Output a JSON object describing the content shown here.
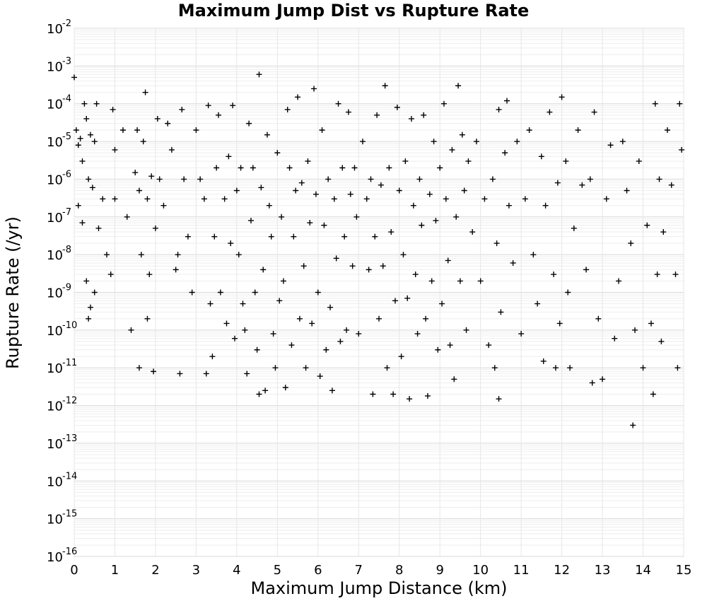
{
  "chart_data": {
    "type": "scatter",
    "title": "Maximum Jump Dist vs Rupture Rate",
    "xlabel": "Maximum Jump Distance (km)",
    "ylabel": "Rupture Rate (/yr)",
    "xlim": [
      0,
      15
    ],
    "ylim": [
      1e-16,
      0.01
    ],
    "y_scale": "log",
    "x_ticks": [
      "0",
      "1",
      "2",
      "3",
      "4",
      "5",
      "6",
      "7",
      "8",
      "9",
      "10",
      "11",
      "12",
      "13",
      "14",
      "15"
    ],
    "y_ticks": [
      {
        "base": "10",
        "exp": "-2"
      },
      {
        "base": "10",
        "exp": "-3"
      },
      {
        "base": "10",
        "exp": "-4"
      },
      {
        "base": "10",
        "exp": "-5"
      },
      {
        "base": "10",
        "exp": "-6"
      },
      {
        "base": "10",
        "exp": "-7"
      },
      {
        "base": "10",
        "exp": "-8"
      },
      {
        "base": "10",
        "exp": "-9"
      },
      {
        "base": "10",
        "exp": "-10"
      },
      {
        "base": "10",
        "exp": "-11"
      },
      {
        "base": "10",
        "exp": "-12"
      },
      {
        "base": "10",
        "exp": "-13"
      },
      {
        "base": "10",
        "exp": "-14"
      },
      {
        "base": "10",
        "exp": "-15"
      },
      {
        "base": "10",
        "exp": "-16"
      }
    ],
    "grid": true,
    "marker": "+",
    "color": "#000000",
    "points": [
      [
        0.0,
        0.0005
      ],
      [
        0.05,
        2e-05
      ],
      [
        0.1,
        8e-06
      ],
      [
        0.15,
        1.2e-05
      ],
      [
        0.2,
        3e-06
      ],
      [
        0.25,
        0.0001
      ],
      [
        0.3,
        4e-05
      ],
      [
        0.35,
        1e-06
      ],
      [
        0.4,
        1.5e-05
      ],
      [
        0.45,
        6e-07
      ],
      [
        0.5,
        1e-05
      ],
      [
        0.55,
        0.0001
      ],
      [
        0.1,
        2e-07
      ],
      [
        0.2,
        7e-08
      ],
      [
        0.3,
        2e-09
      ],
      [
        0.35,
        2e-10
      ],
      [
        0.4,
        4e-10
      ],
      [
        0.5,
        1e-09
      ],
      [
        0.6,
        5e-08
      ],
      [
        0.7,
        3e-07
      ],
      [
        0.8,
        1e-08
      ],
      [
        0.9,
        3e-09
      ],
      [
        0.95,
        7e-05
      ],
      [
        1.0,
        6e-06
      ],
      [
        1.0,
        3e-07
      ],
      [
        1.2,
        2e-05
      ],
      [
        1.3,
        1e-07
      ],
      [
        1.4,
        1e-10
      ],
      [
        1.5,
        1.5e-06
      ],
      [
        1.55,
        2e-05
      ],
      [
        1.6,
        1e-11
      ],
      [
        1.6,
        5e-07
      ],
      [
        1.65,
        1e-08
      ],
      [
        1.7,
        1e-05
      ],
      [
        1.75,
        0.0002
      ],
      [
        1.8,
        3e-07
      ],
      [
        1.8,
        2e-10
      ],
      [
        1.85,
        3e-09
      ],
      [
        1.9,
        1.2e-06
      ],
      [
        1.95,
        8e-12
      ],
      [
        2.0,
        5e-08
      ],
      [
        2.05,
        4e-05
      ],
      [
        2.1,
        1e-06
      ],
      [
        2.2,
        2e-07
      ],
      [
        2.3,
        3e-05
      ],
      [
        2.4,
        6e-06
      ],
      [
        2.5,
        4e-09
      ],
      [
        2.55,
        1e-08
      ],
      [
        2.6,
        7e-12
      ],
      [
        2.65,
        7e-05
      ],
      [
        2.7,
        1e-06
      ],
      [
        2.8,
        3e-08
      ],
      [
        2.9,
        1e-09
      ],
      [
        3.0,
        2e-05
      ],
      [
        3.1,
        1e-06
      ],
      [
        3.2,
        3e-07
      ],
      [
        3.25,
        7e-12
      ],
      [
        3.3,
        9e-05
      ],
      [
        3.35,
        5e-10
      ],
      [
        3.4,
        2e-11
      ],
      [
        3.45,
        3e-08
      ],
      [
        3.5,
        2e-06
      ],
      [
        3.55,
        5e-05
      ],
      [
        3.6,
        1e-09
      ],
      [
        3.7,
        3e-07
      ],
      [
        3.75,
        1.5e-10
      ],
      [
        3.8,
        4e-06
      ],
      [
        3.85,
        2e-08
      ],
      [
        3.9,
        9e-05
      ],
      [
        3.95,
        6e-11
      ],
      [
        4.0,
        5e-07
      ],
      [
        4.05,
        1e-08
      ],
      [
        4.1,
        2e-06
      ],
      [
        4.15,
        5e-10
      ],
      [
        4.2,
        1e-10
      ],
      [
        4.25,
        7e-12
      ],
      [
        4.3,
        3e-05
      ],
      [
        4.35,
        8e-08
      ],
      [
        4.4,
        2e-06
      ],
      [
        4.45,
        1e-09
      ],
      [
        4.5,
        3e-11
      ],
      [
        4.55,
        2e-12
      ],
      [
        4.55,
        0.0006
      ],
      [
        4.6,
        6e-07
      ],
      [
        4.65,
        4e-09
      ],
      [
        4.7,
        2.5e-12
      ],
      [
        4.75,
        1.5e-05
      ],
      [
        4.8,
        2e-07
      ],
      [
        4.85,
        3e-08
      ],
      [
        4.9,
        8e-11
      ],
      [
        4.95,
        1e-11
      ],
      [
        5.0,
        5e-06
      ],
      [
        5.05,
        6e-10
      ],
      [
        5.1,
        1e-07
      ],
      [
        5.15,
        2e-09
      ],
      [
        5.2,
        3e-12
      ],
      [
        5.25,
        7e-05
      ],
      [
        5.3,
        2e-06
      ],
      [
        5.35,
        4e-11
      ],
      [
        5.4,
        3e-08
      ],
      [
        5.45,
        5e-07
      ],
      [
        5.5,
        0.00015
      ],
      [
        5.55,
        2e-10
      ],
      [
        5.6,
        8e-07
      ],
      [
        5.65,
        5e-09
      ],
      [
        5.7,
        1e-11
      ],
      [
        5.75,
        3e-06
      ],
      [
        5.8,
        7e-08
      ],
      [
        5.85,
        1.5e-10
      ],
      [
        5.9,
        0.00025
      ],
      [
        5.95,
        4e-07
      ],
      [
        6.0,
        1e-09
      ],
      [
        6.05,
        6e-12
      ],
      [
        6.1,
        2e-05
      ],
      [
        6.15,
        6e-08
      ],
      [
        6.2,
        3e-11
      ],
      [
        6.25,
        1e-06
      ],
      [
        6.3,
        4e-10
      ],
      [
        6.35,
        2.5e-12
      ],
      [
        6.4,
        3e-07
      ],
      [
        6.45,
        8e-09
      ],
      [
        6.5,
        0.0001
      ],
      [
        6.55,
        5e-11
      ],
      [
        6.6,
        2e-06
      ],
      [
        6.65,
        3e-08
      ],
      [
        6.7,
        1e-10
      ],
      [
        6.75,
        6e-05
      ],
      [
        6.8,
        4e-07
      ],
      [
        6.85,
        5e-09
      ],
      [
        6.9,
        2e-06
      ],
      [
        6.95,
        1e-07
      ],
      [
        7.0,
        8e-11
      ],
      [
        7.1,
        1e-05
      ],
      [
        7.2,
        3e-07
      ],
      [
        7.25,
        4e-09
      ],
      [
        7.3,
        1e-06
      ],
      [
        7.35,
        2e-12
      ],
      [
        7.4,
        3e-08
      ],
      [
        7.45,
        5e-05
      ],
      [
        7.5,
        2e-10
      ],
      [
        7.55,
        7e-07
      ],
      [
        7.6,
        5e-09
      ],
      [
        7.65,
        0.0003
      ],
      [
        7.7,
        1e-11
      ],
      [
        7.75,
        2e-06
      ],
      [
        7.8,
        4e-08
      ],
      [
        7.85,
        2e-12
      ],
      [
        7.9,
        6e-10
      ],
      [
        7.95,
        8e-05
      ],
      [
        8.0,
        5e-07
      ],
      [
        8.05,
        2e-11
      ],
      [
        8.1,
        1e-08
      ],
      [
        8.15,
        3e-06
      ],
      [
        8.2,
        7e-10
      ],
      [
        8.25,
        1.5e-12
      ],
      [
        8.3,
        4e-05
      ],
      [
        8.35,
        2e-07
      ],
      [
        8.4,
        3e-09
      ],
      [
        8.45,
        8e-11
      ],
      [
        8.5,
        1e-06
      ],
      [
        8.55,
        6e-08
      ],
      [
        8.6,
        5e-05
      ],
      [
        8.65,
        2e-10
      ],
      [
        8.7,
        1.8e-12
      ],
      [
        8.75,
        4e-07
      ],
      [
        8.8,
        2e-09
      ],
      [
        8.85,
        1e-05
      ],
      [
        8.9,
        8e-08
      ],
      [
        8.95,
        3e-11
      ],
      [
        9.0,
        2e-06
      ],
      [
        9.05,
        5e-10
      ],
      [
        9.1,
        0.0001
      ],
      [
        9.15,
        3e-07
      ],
      [
        9.2,
        7e-09
      ],
      [
        9.25,
        4e-11
      ],
      [
        9.3,
        6e-06
      ],
      [
        9.35,
        5e-12
      ],
      [
        9.4,
        1e-07
      ],
      [
        9.45,
        0.0003
      ],
      [
        9.5,
        2e-09
      ],
      [
        9.55,
        1.5e-05
      ],
      [
        9.6,
        5e-07
      ],
      [
        9.65,
        1e-10
      ],
      [
        9.7,
        3e-06
      ],
      [
        9.8,
        4e-08
      ],
      [
        9.9,
        1e-05
      ],
      [
        10.0,
        2e-09
      ],
      [
        10.1,
        3e-07
      ],
      [
        10.2,
        4e-11
      ],
      [
        10.3,
        1e-06
      ],
      [
        10.35,
        1e-11
      ],
      [
        10.4,
        2e-08
      ],
      [
        10.45,
        1.5e-12
      ],
      [
        10.45,
        7e-05
      ],
      [
        10.5,
        3e-10
      ],
      [
        10.6,
        5e-06
      ],
      [
        10.65,
        0.00012
      ],
      [
        10.7,
        2e-07
      ],
      [
        10.8,
        6e-09
      ],
      [
        10.9,
        1e-05
      ],
      [
        11.0,
        8e-11
      ],
      [
        11.1,
        3e-07
      ],
      [
        11.2,
        2e-05
      ],
      [
        11.3,
        1e-08
      ],
      [
        11.4,
        5e-10
      ],
      [
        11.5,
        4e-06
      ],
      [
        11.55,
        1.5e-11
      ],
      [
        11.6,
        2e-07
      ],
      [
        11.7,
        6e-05
      ],
      [
        11.8,
        3e-09
      ],
      [
        11.85,
        1e-11
      ],
      [
        11.9,
        8e-07
      ],
      [
        11.95,
        1.5e-10
      ],
      [
        12.0,
        0.00015
      ],
      [
        12.1,
        3e-06
      ],
      [
        12.15,
        1e-09
      ],
      [
        12.2,
        1e-11
      ],
      [
        12.3,
        5e-08
      ],
      [
        12.4,
        2e-05
      ],
      [
        12.5,
        7e-07
      ],
      [
        12.6,
        4e-09
      ],
      [
        12.7,
        1e-06
      ],
      [
        12.75,
        4e-12
      ],
      [
        12.8,
        6e-05
      ],
      [
        12.9,
        2e-10
      ],
      [
        13.0,
        5e-12
      ],
      [
        13.1,
        3e-07
      ],
      [
        13.2,
        8e-06
      ],
      [
        13.3,
        6e-11
      ],
      [
        13.4,
        2e-09
      ],
      [
        13.5,
        1e-05
      ],
      [
        13.6,
        5e-07
      ],
      [
        13.7,
        2e-08
      ],
      [
        13.75,
        3e-13
      ],
      [
        13.8,
        1e-10
      ],
      [
        13.9,
        3e-06
      ],
      [
        14.0,
        1e-11
      ],
      [
        14.1,
        6e-08
      ],
      [
        14.2,
        1.5e-10
      ],
      [
        14.25,
        2e-12
      ],
      [
        14.3,
        0.0001
      ],
      [
        14.35,
        3e-09
      ],
      [
        14.4,
        1e-06
      ],
      [
        14.45,
        5e-11
      ],
      [
        14.5,
        4e-08
      ],
      [
        14.6,
        2e-05
      ],
      [
        14.7,
        7e-07
      ],
      [
        14.8,
        3e-09
      ],
      [
        14.85,
        1e-11
      ],
      [
        14.9,
        0.0001
      ],
      [
        14.95,
        6e-06
      ]
    ]
  }
}
